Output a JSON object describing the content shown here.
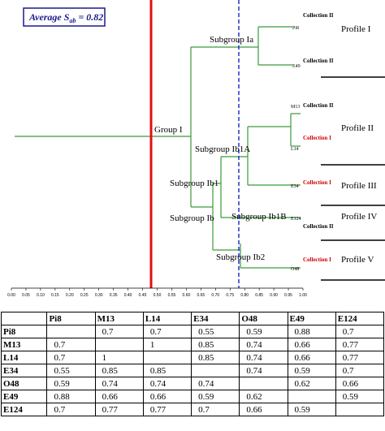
{
  "average_box": {
    "prefix": "Average S",
    "subscript": "ab",
    "suffix": " = 0.82"
  },
  "groups": {
    "group_1": "Group I",
    "subgroup_1a": "Subgroup Ia",
    "subgroup_1b": "Subgroup Ib",
    "subgroup_1b1": "Subgroup Ib1",
    "subgroup_1b1a": "Subgroup Ib1A",
    "subgroup_1b1b": "Subgroup Ib1B",
    "subgroup_1b2": "Subgroup Ib2"
  },
  "leaves": [
    "Pi8",
    "E49",
    "M13",
    "L14",
    "E34",
    "E124",
    "O48"
  ],
  "collections": [
    {
      "label": "Collection II",
      "color": "#000000"
    },
    {
      "label": "Collection II",
      "color": "#000000"
    },
    {
      "label": "Collection II",
      "color": "#000000"
    },
    {
      "label": "Collection I",
      "color": "#cc0000"
    },
    {
      "label": "Collection I",
      "color": "#cc0000"
    },
    {
      "label": "Collection II",
      "color": "#000000"
    },
    {
      "label": "Collection I",
      "color": "#cc0000"
    }
  ],
  "profiles": [
    "Profile I",
    "Profile II",
    "Profile III",
    "Profile IV",
    "Profile V"
  ],
  "axis_ticks": [
    "0.00",
    "0.05",
    "0.10",
    "0.15",
    "0.20",
    "0.25",
    "0.30",
    "0.35",
    "0.40",
    "0.45",
    "0.50",
    "0.55",
    "0.60",
    "0.65",
    "0.70",
    "0.75",
    "0.80",
    "0.85",
    "0.90",
    "0.95",
    "1.00"
  ],
  "colors": {
    "tree": "#3a9a3a",
    "red_line": "#e01010",
    "blue_line": "#2233cc",
    "box_border": "#1a1a8c"
  },
  "table": {
    "headers": [
      "",
      "Pi8",
      "M13",
      "L14",
      "E34",
      "O48",
      "E49",
      "E124"
    ],
    "rows": [
      [
        "Pi8",
        "",
        "0.7",
        "0.7",
        "0.55",
        "0.59",
        "0.88",
        "0.7"
      ],
      [
        "M13",
        "0.7",
        "",
        "1",
        "0.85",
        "0.74",
        "0.66",
        "0.77"
      ],
      [
        "L14",
        "0.7",
        "1",
        "",
        "0.85",
        "0.74",
        "0.66",
        "0.77"
      ],
      [
        "E34",
        "0.55",
        "0.85",
        "0.85",
        "",
        "0.74",
        "0.59",
        "0.7"
      ],
      [
        "O48",
        "0.59",
        "0.74",
        "0.74",
        "0.74",
        "",
        "0.62",
        "0.66"
      ],
      [
        "E49",
        "0.88",
        "0.66",
        "0.66",
        "0.59",
        "0.62",
        "",
        "0.59"
      ],
      [
        "E124",
        "0.7",
        "0.77",
        "0.77",
        "0.7",
        "0.66",
        "0.59",
        ""
      ]
    ]
  }
}
